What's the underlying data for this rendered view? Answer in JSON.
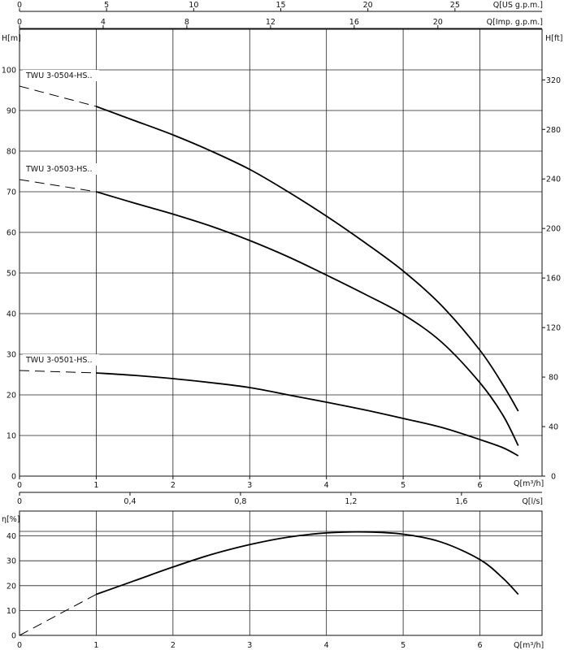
{
  "chart_data": [
    {
      "type": "line",
      "title": "",
      "top_axes": [
        {
          "label": "Q[US g.p.m.]",
          "ticks": [
            "0",
            "5",
            "10",
            "15",
            "20",
            "25"
          ],
          "values": [
            0,
            5,
            10,
            15,
            20,
            25
          ],
          "max_in_m3h": 6.81
        },
        {
          "label": "Q[Imp. g.p.m.]",
          "ticks": [
            "0",
            "4",
            "8",
            "12",
            "16",
            "20"
          ],
          "values": [
            0,
            4,
            8,
            12,
            16,
            20
          ],
          "max_in_m3h": 6.81
        }
      ],
      "xlabel": "Q[m³/h]",
      "x_ticks": [
        "0",
        "1",
        "2",
        "3",
        "4",
        "5",
        "6"
      ],
      "xlim": [
        0,
        6.81
      ],
      "ylabel": "H[m]",
      "ylim": [
        0,
        110
      ],
      "y_ticks": [
        "0",
        "10",
        "20",
        "30",
        "40",
        "50",
        "60",
        "70",
        "80",
        "90",
        "100"
      ],
      "y2label": "H[ft]",
      "y2_ticks": [
        "0",
        "40",
        "80",
        "120",
        "160",
        "200",
        "240",
        "280",
        "320"
      ],
      "grid": true,
      "series": [
        {
          "name": "TWU 3-0504-HS..",
          "dashed_x": [
            0,
            1
          ],
          "dashed_y": [
            96,
            91
          ],
          "x": [
            1,
            1.5,
            2,
            2.5,
            3,
            3.5,
            4,
            4.5,
            5,
            5.5,
            6,
            6.3,
            6.5
          ],
          "y": [
            91,
            87.5,
            84,
            80,
            75.5,
            70,
            64,
            57.5,
            50.5,
            42,
            31,
            22.5,
            16
          ]
        },
        {
          "name": "TWU 3-0503-HS..",
          "dashed_x": [
            0,
            1
          ],
          "dashed_y": [
            73,
            70
          ],
          "x": [
            1,
            1.5,
            2,
            2.5,
            3,
            3.5,
            4,
            4.5,
            5,
            5.5,
            6,
            6.3,
            6.5
          ],
          "y": [
            70,
            67.2,
            64.5,
            61.5,
            58,
            54,
            49.5,
            44.8,
            39.8,
            33,
            23,
            15,
            7.5
          ]
        },
        {
          "name": "TWU 3-0501-HS..",
          "dashed_x": [
            0,
            1
          ],
          "dashed_y": [
            26,
            25.4
          ],
          "x": [
            1,
            1.5,
            2,
            2.5,
            3,
            3.5,
            4,
            4.5,
            5,
            5.5,
            6,
            6.3,
            6.5
          ],
          "y": [
            25.4,
            24.8,
            24,
            23,
            21.8,
            20,
            18.2,
            16.3,
            14.2,
            12,
            9,
            7,
            5
          ]
        }
      ]
    },
    {
      "type": "line",
      "title": "",
      "top_axis": {
        "label": "Q[l/s]",
        "ticks": [
          "0",
          "0,4",
          "0,8",
          "1,2",
          "1,6"
        ],
        "values": [
          0,
          0.4,
          0.8,
          1.2,
          1.6
        ],
        "max_in_m3h": 6.81
      },
      "xlabel": "Q[m³/h]",
      "x_ticks": [
        "0",
        "1",
        "2",
        "3",
        "4",
        "5",
        "6"
      ],
      "xlim": [
        0,
        6.81
      ],
      "ylabel": "η[%]",
      "ylim": [
        0,
        50
      ],
      "y_ticks": [
        "0",
        "10",
        "20",
        "30",
        "40"
      ],
      "grid": true,
      "series": [
        {
          "name": "",
          "dashed_x": [
            0,
            1
          ],
          "dashed_y": [
            0,
            16.5
          ],
          "x": [
            1,
            1.5,
            2,
            2.5,
            3,
            3.5,
            4,
            4.5,
            5,
            5.5,
            6,
            6.3,
            6.5
          ],
          "y": [
            16.5,
            22,
            27.5,
            32.5,
            36.5,
            39.5,
            41.2,
            41.6,
            40.7,
            37.5,
            30.5,
            23,
            16.5
          ]
        }
      ]
    }
  ]
}
